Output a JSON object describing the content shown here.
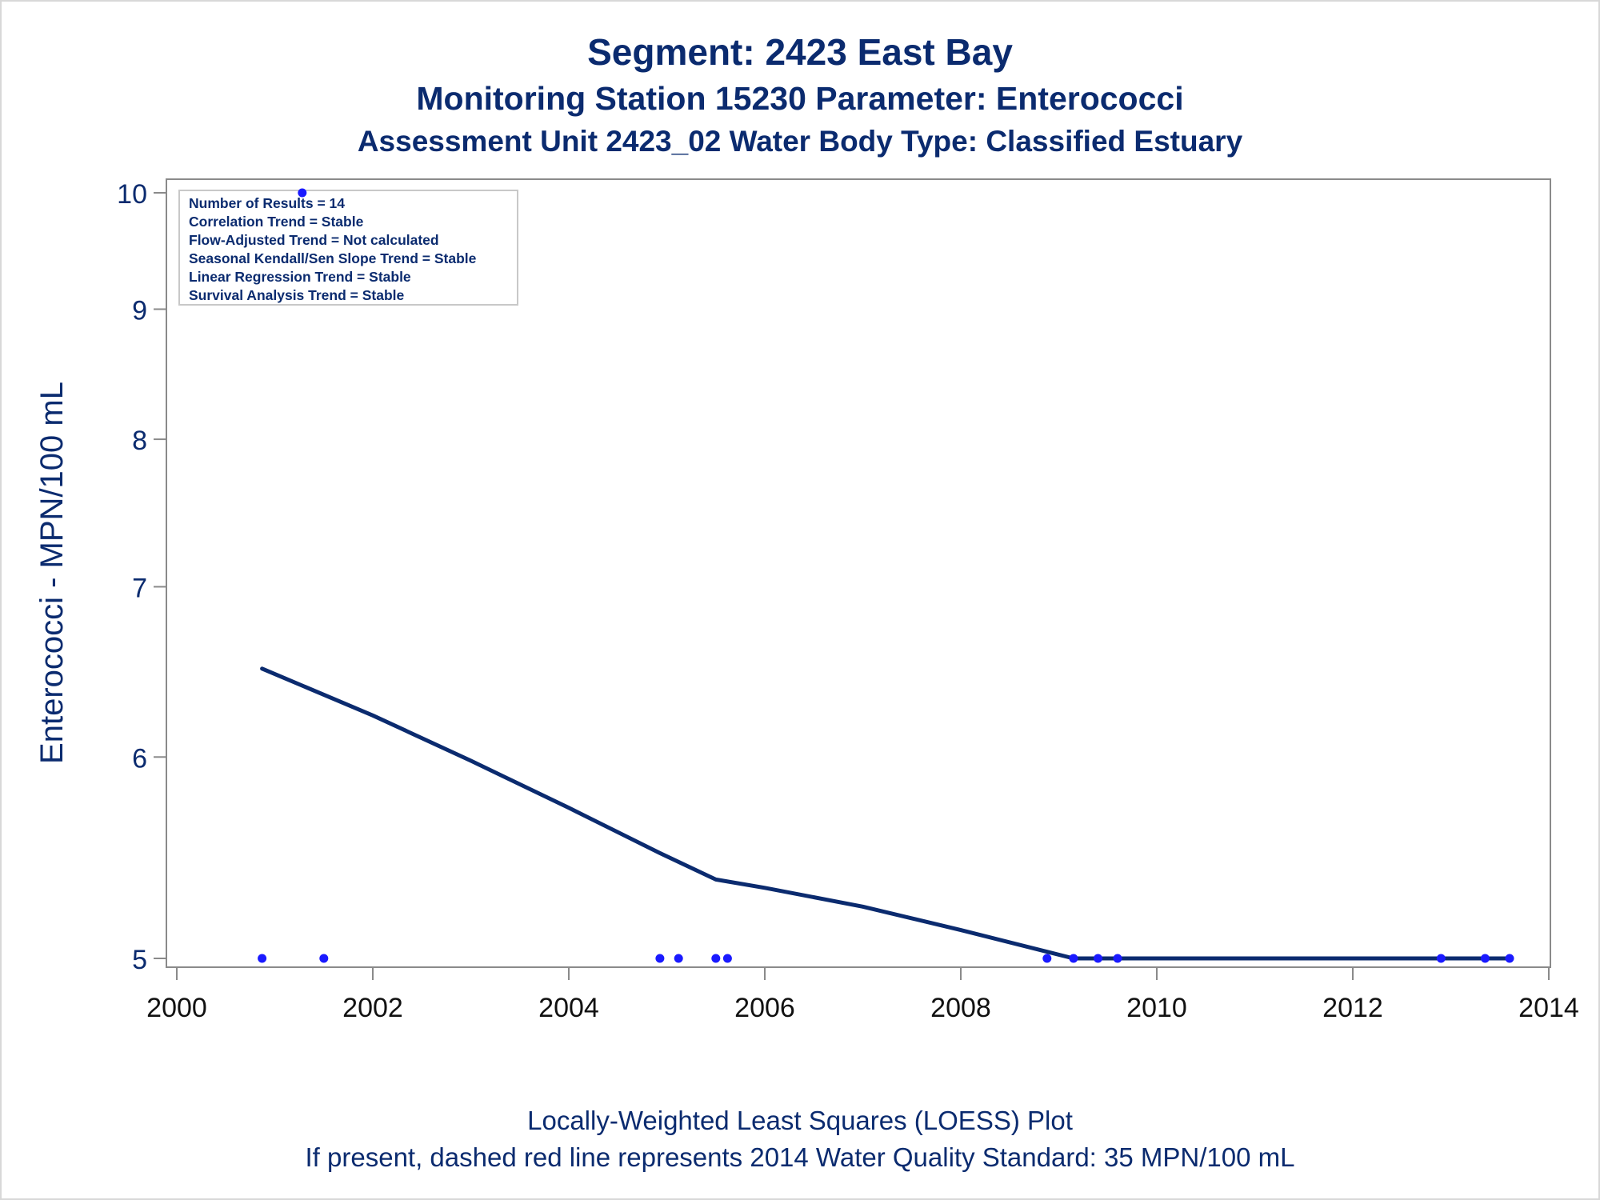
{
  "title": {
    "line1": "Segment: 2423  East Bay",
    "line2": "Monitoring Station 15230 Parameter: Enterococci",
    "line3": "Assessment Unit 2423_02   Water Body Type: Classified Estuary"
  },
  "footer": {
    "line1": "Locally-Weighted Least Squares (LOESS) Plot",
    "line2": "If present, dashed red line represents 2014 Water Quality Standard: 35 MPN/100 mL"
  },
  "legend_box": {
    "lines": [
      "Number of Results = 14",
      "Correlation Trend = Stable",
      "Flow-Adjusted Trend = Not calculated",
      "Seasonal Kendall/Sen Slope Trend = Stable",
      "Linear Regression Trend = Stable",
      "Survival Analysis Trend = Stable"
    ]
  },
  "colors": {
    "text": "#0b2b6f",
    "points": "#1a1aff",
    "loess_line": "#0b2b6f",
    "axis": "#8a8a8a"
  },
  "chart_data": {
    "type": "scatter",
    "ylabel": "Enterococci - MPN/100 mL",
    "xlabel": "",
    "y_scale": "log",
    "xlim": [
      2000,
      2014
    ],
    "ylim": [
      4.95,
      10.15
    ],
    "x_ticks": [
      "2000",
      "2002",
      "2004",
      "2006",
      "2008",
      "2010",
      "2012",
      "2014"
    ],
    "y_ticks": [
      "5",
      "6",
      "7",
      "8",
      "9",
      "10"
    ],
    "grid": false,
    "series": [
      {
        "type": "scatter",
        "x": [
          2000.87,
          2001.28,
          2001.5,
          2004.93,
          2005.12,
          2005.5,
          2005.62,
          2008.88,
          2009.15,
          2009.4,
          2009.6,
          2012.9,
          2013.35,
          2013.6
        ],
        "y": [
          5,
          10,
          5,
          5,
          5,
          5,
          5,
          5,
          5,
          5,
          5,
          5,
          5,
          5
        ]
      },
      {
        "type": "line",
        "x": [
          2000.87,
          2002.0,
          2003.0,
          2004.0,
          2004.93,
          2005.5,
          2006.0,
          2007.0,
          2008.0,
          2008.88,
          2009.15,
          2010.0,
          2011.0,
          2012.0,
          2013.0,
          2013.6
        ],
        "y": [
          6.5,
          6.23,
          5.98,
          5.73,
          5.5,
          5.37,
          5.33,
          5.24,
          5.13,
          5.03,
          5.0,
          5.0,
          5.0,
          5.0,
          5.0,
          5.0
        ]
      }
    ]
  }
}
